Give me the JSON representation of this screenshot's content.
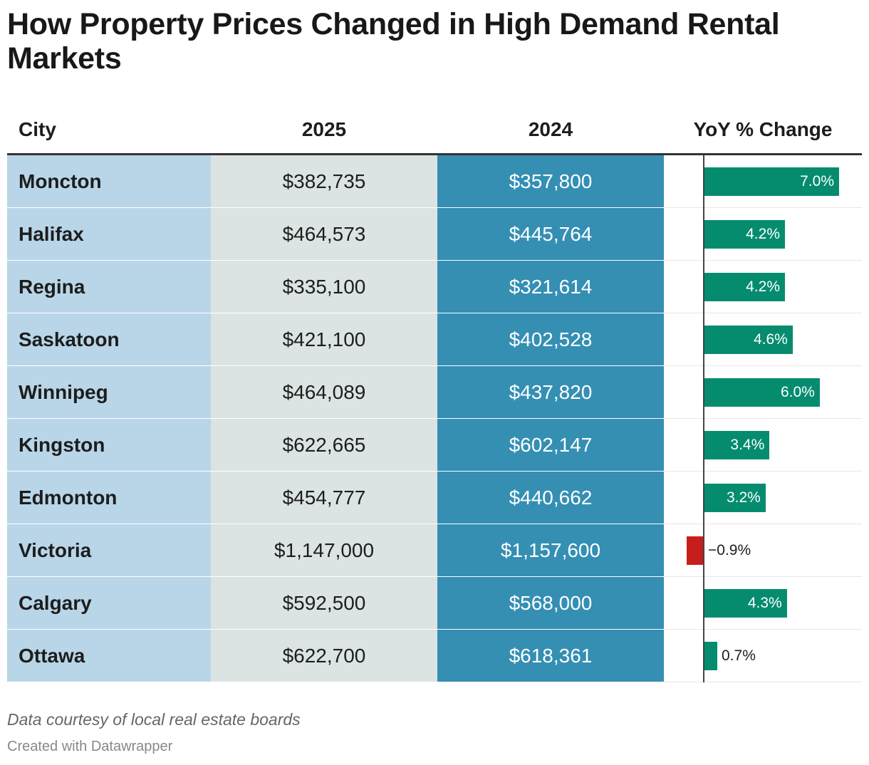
{
  "title": "How Property Prices Changed in High Demand Rental Markets",
  "columns": {
    "city": "City",
    "y2025": "2025",
    "y2024": "2024",
    "yoy": "YoY % Change"
  },
  "colors": {
    "positive": "#058c6f",
    "negative": "#c71e1d",
    "city_col": "#b9d6e8",
    "col_2025": "#dce3e3",
    "col_2024": "#348fb3"
  },
  "chart_data": {
    "type": "table",
    "title": "How Property Prices Changed in High Demand Rental Markets",
    "yoy_range": [
      -0.9,
      7.0
    ],
    "rows": [
      {
        "city": "Moncton",
        "y2025": "$382,735",
        "y2024": "$357,800",
        "yoy": 7.0,
        "yoy_label": "7.0%"
      },
      {
        "city": "Halifax",
        "y2025": "$464,573",
        "y2024": "$445,764",
        "yoy": 4.2,
        "yoy_label": "4.2%"
      },
      {
        "city": "Regina",
        "y2025": "$335,100",
        "y2024": "$321,614",
        "yoy": 4.2,
        "yoy_label": "4.2%"
      },
      {
        "city": "Saskatoon",
        "y2025": "$421,100",
        "y2024": "$402,528",
        "yoy": 4.6,
        "yoy_label": "4.6%"
      },
      {
        "city": "Winnipeg",
        "y2025": "$464,089",
        "y2024": "$437,820",
        "yoy": 6.0,
        "yoy_label": "6.0%"
      },
      {
        "city": "Kingston",
        "y2025": "$622,665",
        "y2024": "$602,147",
        "yoy": 3.4,
        "yoy_label": "3.4%"
      },
      {
        "city": "Edmonton",
        "y2025": "$454,777",
        "y2024": "$440,662",
        "yoy": 3.2,
        "yoy_label": "3.2%"
      },
      {
        "city": "Victoria",
        "y2025": "$1,147,000",
        "y2024": "$1,157,600",
        "yoy": -0.9,
        "yoy_label": "−0.9%"
      },
      {
        "city": "Calgary",
        "y2025": "$592,500",
        "y2024": "$568,000",
        "yoy": 4.3,
        "yoy_label": "4.3%"
      },
      {
        "city": "Ottawa",
        "y2025": "$622,700",
        "y2024": "$618,361",
        "yoy": 0.7,
        "yoy_label": "0.7%"
      }
    ]
  },
  "notes": "Data courtesy of local real estate boards",
  "credit": "Created with Datawrapper"
}
